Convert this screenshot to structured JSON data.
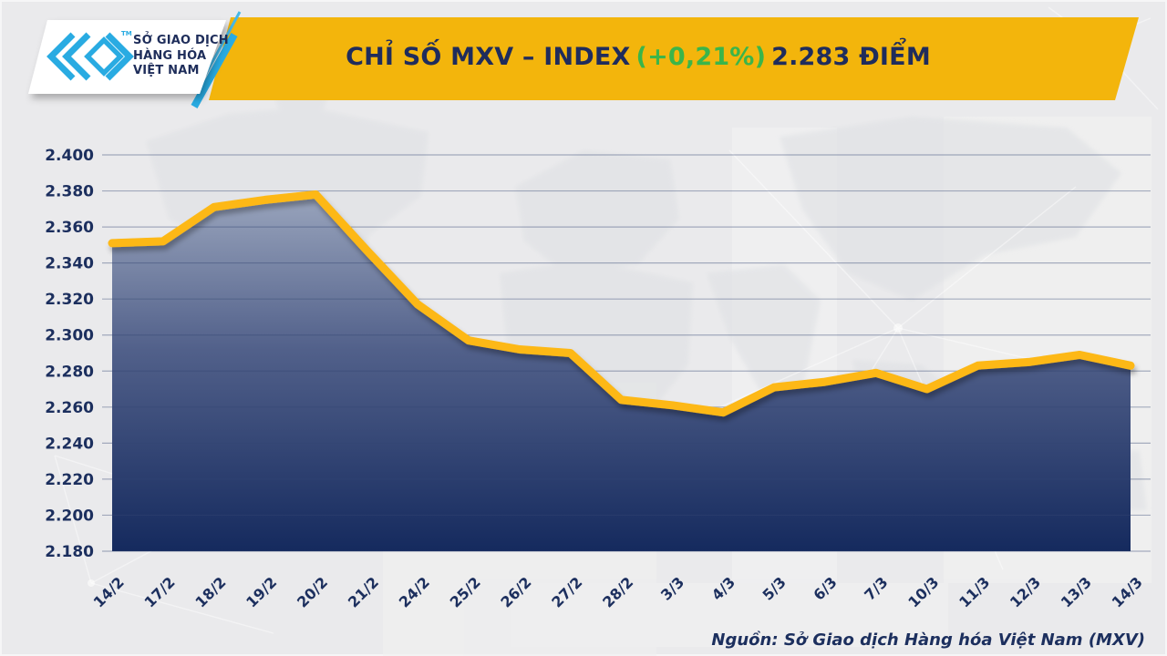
{
  "header": {
    "logo": {
      "org_lines": [
        "SỞ GIAO DỊCH",
        "HÀNG HÓA",
        "VIỆT NAM"
      ],
      "trademark": "TM"
    },
    "title_main": "CHỈ SỐ MXV – INDEX",
    "title_change": "(+0,21%)",
    "title_points": "2.283 ĐIỂM"
  },
  "chart_data": {
    "type": "area",
    "title": "CHỈ SỐ MXV – INDEX (+0,21%) 2.283 ĐIỂM",
    "categories": [
      "14/2",
      "17/2",
      "18/2",
      "19/2",
      "20/2",
      "21/2",
      "24/2",
      "25/2",
      "26/2",
      "27/2",
      "28/2",
      "3/3",
      "4/3",
      "5/3",
      "6/3",
      "7/3",
      "10/3",
      "11/3",
      "12/3",
      "13/3",
      "14/3"
    ],
    "values": [
      2.351,
      2.352,
      2.371,
      2.375,
      2.378,
      2.347,
      2.317,
      2.297,
      2.292,
      2.29,
      2.264,
      2.261,
      2.257,
      2.271,
      2.274,
      2.279,
      2.27,
      2.283,
      2.285,
      2.289,
      2.283
    ],
    "ylim": [
      2.18,
      2.4
    ],
    "ytick_step": 0.02,
    "ytick_label_format": "x.xxx",
    "grid": "horizontal-only",
    "legend": "none",
    "xlabel": "",
    "ylabel": "",
    "colors": {
      "line": "#FDB813",
      "banner_gold": "#F3B50C",
      "navy_text": "#1C2F5E",
      "green_change": "#3BB54A",
      "logo_blue": "#29ABE2",
      "fill_top": "#9DA8BF",
      "fill_mid": "#51608A",
      "fill_bottom": "#152A5E"
    }
  },
  "footer": {
    "source": "Nguồn: Sở Giao dịch Hàng hóa Việt Nam (MXV)"
  }
}
